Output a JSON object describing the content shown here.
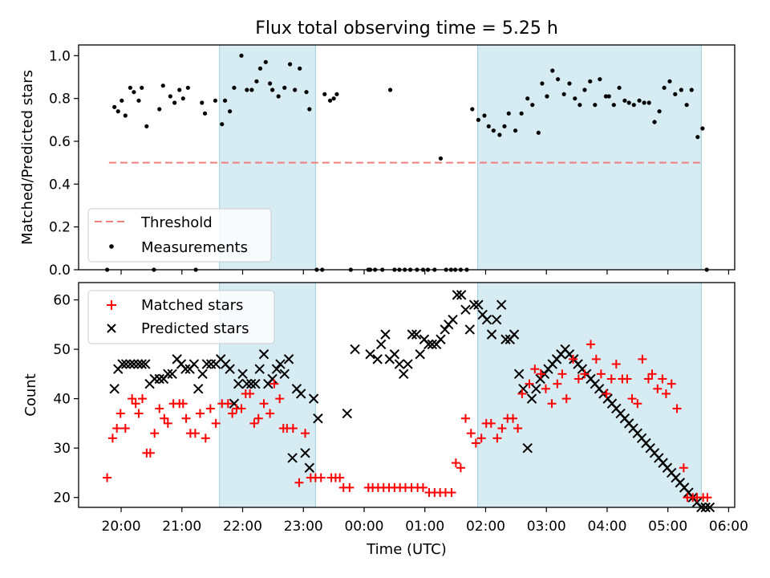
{
  "chart_data": [
    {
      "type": "scatter",
      "title": "Flux total observing time = 5.25 h",
      "ylabel": "Matched/Predicted stars",
      "xlabel": "",
      "x_unit": "hours_since_19:00_UTC",
      "xlim": [
        0.3,
        11.1
      ],
      "ylim": [
        0.0,
        1.05
      ],
      "yticks": [
        0.0,
        0.2,
        0.4,
        0.6,
        0.8,
        1.0
      ],
      "ytick_labels": [
        "0.0",
        "0.2",
        "0.4",
        "0.6",
        "0.8",
        "1.0"
      ],
      "shaded_intervals": [
        [
          2.62,
          4.2
        ],
        [
          6.87,
          10.55
        ]
      ],
      "legend": {
        "placement": "lower-left",
        "entries": [
          "Threshold",
          "Measurements"
        ]
      },
      "threshold": {
        "name": "Threshold",
        "value": 0.5,
        "x_range": [
          0.8,
          10.55
        ],
        "color": "#f07f7f",
        "style": "dashed"
      },
      "series": [
        {
          "name": "Measurements",
          "color": "#000000",
          "marker": "dot",
          "x": [
            0.77,
            0.89,
            0.95,
            1.01,
            1.07,
            1.15,
            1.21,
            1.29,
            1.34,
            1.42,
            1.54,
            1.63,
            1.69,
            1.81,
            1.88,
            1.96,
            2.02,
            2.1,
            2.23,
            2.33,
            2.38,
            2.55,
            2.66,
            2.71,
            2.79,
            2.86,
            2.98,
            3.07,
            3.15,
            3.23,
            3.29,
            3.38,
            3.45,
            3.49,
            3.59,
            3.69,
            3.78,
            3.86,
            3.94,
            4.05,
            4.1,
            4.22,
            4.31,
            4.35,
            4.44,
            4.5,
            4.55,
            4.78,
            5.07,
            5.1,
            5.18,
            5.3,
            5.43,
            5.5,
            5.58,
            5.67,
            5.76,
            5.87,
            5.97,
            6.05,
            6.16,
            6.26,
            6.35,
            6.43,
            6.5,
            6.59,
            6.69,
            6.78,
            6.88,
            6.98,
            7.05,
            7.13,
            7.23,
            7.31,
            7.38,
            7.49,
            7.59,
            7.69,
            7.77,
            7.87,
            7.93,
            8.01,
            8.1,
            8.19,
            8.29,
            8.38,
            8.47,
            8.55,
            8.63,
            8.72,
            8.8,
            8.88,
            8.98,
            9.03,
            9.11,
            9.2,
            9.29,
            9.36,
            9.44,
            9.53,
            9.61,
            9.69,
            9.78,
            9.86,
            9.94,
            10.03,
            10.12,
            10.22,
            10.31,
            10.39,
            10.49,
            10.57,
            10.64
          ],
          "y": [
            0.0,
            0.76,
            0.74,
            0.79,
            0.72,
            0.85,
            0.83,
            0.79,
            0.85,
            0.67,
            0.0,
            0.75,
            0.86,
            0.81,
            0.78,
            0.84,
            0.8,
            0.85,
            0.0,
            0.78,
            0.73,
            0.79,
            0.68,
            0.79,
            0.74,
            0.85,
            1.0,
            0.84,
            0.84,
            0.88,
            0.94,
            0.97,
            0.87,
            0.84,
            0.81,
            0.85,
            0.96,
            0.84,
            0.94,
            0.83,
            0.75,
            0.0,
            0.0,
            0.82,
            0.79,
            0.8,
            0.82,
            0.0,
            0.0,
            0.0,
            0.0,
            0.0,
            0.84,
            0.0,
            0.0,
            0.0,
            0.0,
            0.0,
            0.0,
            0.0,
            0.0,
            0.52,
            0.0,
            0.0,
            0.0,
            0.0,
            0.0,
            0.75,
            0.7,
            0.72,
            0.67,
            0.65,
            0.63,
            0.67,
            0.73,
            0.65,
            0.73,
            0.8,
            0.77,
            0.64,
            0.87,
            0.81,
            0.93,
            0.89,
            0.82,
            0.87,
            0.8,
            0.77,
            0.84,
            0.88,
            0.77,
            0.89,
            0.81,
            0.81,
            0.77,
            0.85,
            0.79,
            0.78,
            0.77,
            0.79,
            0.78,
            0.78,
            0.69,
            0.74,
            0.85,
            0.88,
            0.82,
            0.84,
            0.77,
            0.84,
            0.62,
            0.66,
            0.0
          ]
        }
      ]
    },
    {
      "type": "scatter",
      "title": "",
      "ylabel": "Count",
      "xlabel": "Time (UTC)",
      "x_unit": "hours_since_19:00_UTC",
      "xlim": [
        0.3,
        11.1
      ],
      "ylim": [
        18,
        63.5
      ],
      "yticks": [
        20,
        30,
        40,
        50,
        60
      ],
      "ytick_labels": [
        "20",
        "30",
        "40",
        "50",
        "60"
      ],
      "xtick_positions": [
        1,
        2,
        3,
        4,
        5,
        6,
        7,
        8,
        9,
        10,
        11
      ],
      "xtick_labels": [
        "20:00",
        "21:00",
        "22:00",
        "23:00",
        "00:00",
        "01:00",
        "02:00",
        "03:00",
        "04:00",
        "05:00",
        "06:00"
      ],
      "shaded_intervals": [
        [
          2.62,
          4.2
        ],
        [
          6.87,
          10.55
        ]
      ],
      "legend": {
        "placement": "top-left",
        "entries": [
          "Matched stars",
          "Predicted stars"
        ]
      },
      "series": [
        {
          "name": "Matched stars",
          "color": "#ff0000",
          "marker": "plus",
          "x": [
            0.77,
            0.86,
            0.93,
            0.99,
            1.07,
            1.18,
            1.24,
            1.29,
            1.35,
            1.42,
            1.48,
            1.55,
            1.63,
            1.71,
            1.77,
            1.86,
            1.96,
            2.02,
            2.07,
            2.14,
            2.22,
            2.3,
            2.39,
            2.47,
            2.56,
            2.66,
            2.76,
            2.83,
            2.9,
            2.98,
            3.05,
            3.12,
            3.19,
            3.26,
            3.35,
            3.45,
            3.52,
            3.61,
            3.67,
            3.73,
            3.83,
            3.93,
            4.03,
            4.12,
            4.2,
            4.29,
            4.46,
            4.53,
            4.6,
            4.66,
            4.76,
            5.07,
            5.14,
            5.23,
            5.32,
            5.41,
            5.5,
            5.59,
            5.68,
            5.78,
            5.88,
            5.97,
            6.07,
            6.16,
            6.25,
            6.34,
            6.44,
            6.51,
            6.59,
            6.67,
            6.76,
            6.84,
            6.93,
            7.01,
            7.09,
            7.19,
            7.27,
            7.36,
            7.45,
            7.53,
            7.6,
            7.72,
            7.81,
            7.91,
            7.99,
            8.09,
            8.18,
            8.26,
            8.33,
            8.44,
            8.53,
            8.63,
            8.73,
            8.82,
            8.9,
            8.99,
            9.07,
            9.15,
            9.25,
            9.33,
            9.41,
            9.5,
            9.58,
            9.68,
            9.74,
            9.83,
            9.91,
            9.97,
            10.06,
            10.15,
            10.26,
            10.32,
            10.41,
            10.48,
            10.58,
            10.65
          ],
          "y": [
            24,
            32,
            34,
            37,
            34,
            40,
            39,
            37,
            40,
            29,
            29,
            33,
            38,
            36,
            35,
            39,
            39,
            39,
            36,
            33,
            33,
            37,
            32,
            38,
            35,
            39,
            39,
            37,
            38,
            38,
            41,
            41,
            35,
            36,
            39,
            37,
            43,
            40,
            34,
            34,
            34,
            23,
            33,
            24,
            24,
            24,
            24,
            24,
            24,
            22,
            22,
            22,
            22,
            22,
            22,
            22,
            22,
            22,
            22,
            22,
            22,
            22,
            21,
            21,
            21,
            21,
            21,
            27,
            26,
            36,
            33,
            31,
            32,
            35,
            35,
            32,
            34,
            36,
            36,
            34,
            41,
            43,
            46,
            45,
            42,
            39,
            43,
            45,
            40,
            48,
            44,
            45,
            51,
            48,
            45,
            41,
            44,
            47,
            44,
            44,
            40,
            39,
            48,
            44,
            45,
            42,
            44,
            41,
            43,
            38,
            26,
            20,
            20,
            20,
            20,
            20
          ]
        },
        {
          "name": "Predicted stars",
          "color": "#000000",
          "marker": "x",
          "x": [
            0.89,
            0.95,
            1.02,
            1.08,
            1.15,
            1.21,
            1.28,
            1.34,
            1.4,
            1.47,
            1.55,
            1.63,
            1.7,
            1.77,
            1.84,
            1.92,
            1.99,
            2.06,
            2.13,
            2.2,
            2.27,
            2.34,
            2.41,
            2.48,
            2.56,
            2.64,
            2.72,
            2.79,
            2.86,
            2.93,
            3.0,
            3.07,
            3.14,
            3.21,
            3.28,
            3.35,
            3.42,
            3.49,
            3.56,
            3.62,
            3.69,
            3.76,
            3.82,
            3.89,
            3.96,
            4.03,
            4.1,
            4.17,
            4.24,
            4.72,
            4.85,
            5.1,
            5.22,
            5.28,
            5.35,
            5.42,
            5.5,
            5.58,
            5.65,
            5.72,
            5.79,
            5.86,
            5.92,
            5.99,
            6.06,
            6.12,
            6.19,
            6.26,
            6.33,
            6.39,
            6.46,
            6.53,
            6.6,
            6.67,
            6.74,
            6.81,
            6.88,
            6.95,
            7.02,
            7.1,
            7.18,
            7.26,
            7.33,
            7.4,
            7.47,
            7.55,
            7.62,
            7.69,
            7.76,
            7.83,
            7.9,
            7.97,
            8.03,
            8.1,
            8.17,
            8.24,
            8.31,
            8.38,
            8.45,
            8.52,
            8.59,
            8.66,
            8.73,
            8.8,
            8.87,
            8.94,
            9.01,
            9.08,
            9.15,
            9.22,
            9.29,
            9.36,
            9.43,
            9.5,
            9.57,
            9.64,
            9.71,
            9.78,
            9.85,
            9.92,
            9.99,
            10.06,
            10.13,
            10.2,
            10.27,
            10.34,
            10.41,
            10.48,
            10.55,
            10.62,
            10.69
          ],
          "y": [
            42,
            46,
            47,
            47,
            47,
            47,
            47,
            47,
            47,
            43,
            44,
            44,
            44,
            45,
            45,
            48,
            47,
            46,
            46,
            47,
            42,
            45,
            47,
            47,
            47,
            48,
            47,
            46,
            39,
            43,
            45,
            43,
            43,
            43,
            46,
            49,
            43,
            44,
            46,
            47,
            45,
            48,
            28,
            42,
            41,
            29,
            26,
            40,
            36,
            37,
            50,
            49,
            48,
            51,
            53,
            48,
            49,
            47,
            45,
            47,
            53,
            53,
            49,
            52,
            51,
            51,
            51,
            52,
            54,
            55,
            56,
            61,
            61,
            58,
            54,
            59,
            59,
            57,
            56,
            53,
            56,
            59,
            52,
            52,
            53,
            45,
            42,
            30,
            40,
            42,
            44,
            45,
            46,
            47,
            48,
            49,
            50,
            49,
            48,
            47,
            46,
            45,
            44,
            43,
            42,
            41,
            40,
            39,
            38,
            37,
            36,
            35,
            34,
            33,
            32,
            31,
            30,
            29,
            28,
            27,
            26,
            25,
            24,
            23,
            22,
            21,
            20,
            19,
            18,
            18,
            18
          ]
        }
      ]
    }
  ]
}
